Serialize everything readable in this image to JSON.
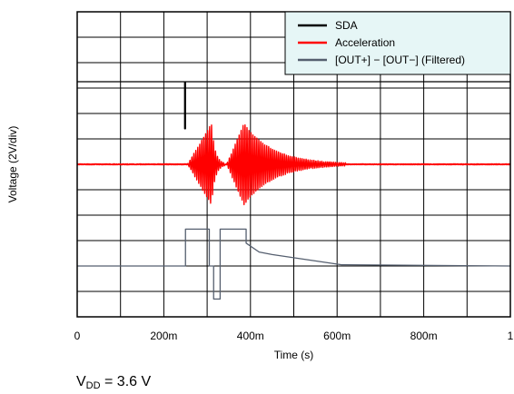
{
  "chart_data": {
    "type": "line",
    "xlabel": "Time (s)",
    "ylabel": "Voltage (2V/div)",
    "xlim": [
      0,
      1
    ],
    "ylim": [
      0,
      12
    ],
    "grid": true,
    "x_ticks": [
      "0",
      "200m",
      "400m",
      "600m",
      "800m",
      "1"
    ],
    "x_divisions": 10,
    "y_divisions": 12,
    "legend_position": "top-right",
    "series": [
      {
        "name": "SDA",
        "color": "#000000",
        "points": [
          [
            0,
            9.25
          ],
          [
            0.248,
            9.25
          ],
          [
            0.248,
            7.4
          ],
          [
            0.25,
            7.4
          ],
          [
            0.25,
            9.25
          ],
          [
            1,
            9.25
          ]
        ]
      },
      {
        "name": "Acceleration",
        "color": "#ff0000",
        "baseline": 6.0,
        "bursts": [
          {
            "start": 0.255,
            "peak": 0.31,
            "end": 0.34,
            "amplitude": 1.6
          },
          {
            "start": 0.345,
            "peak": 0.385,
            "end": 0.62,
            "amplitude": 1.6
          }
        ]
      },
      {
        "name": "[OUT+] − [OUT−] (Filtered)",
        "color": "#555f6f",
        "points": [
          [
            0,
            2.0
          ],
          [
            0.25,
            2.0
          ],
          [
            0.25,
            3.45
          ],
          [
            0.305,
            3.45
          ],
          [
            0.305,
            2.0
          ],
          [
            0.315,
            2.0
          ],
          [
            0.315,
            0.7
          ],
          [
            0.33,
            0.7
          ],
          [
            0.33,
            3.45
          ],
          [
            0.39,
            3.45
          ],
          [
            0.39,
            2.9
          ],
          [
            0.42,
            2.55
          ],
          [
            0.45,
            2.45
          ],
          [
            0.61,
            2.05
          ],
          [
            1,
            2.0
          ]
        ]
      }
    ]
  },
  "vdd_label": {
    "symbol": "V",
    "subscript": "DD",
    "value": "= 3.6 V"
  }
}
